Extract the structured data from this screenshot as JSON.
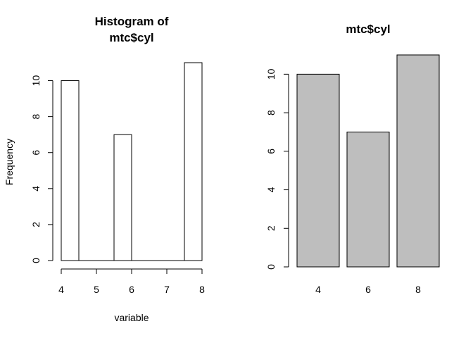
{
  "chart_data": [
    {
      "type": "bar",
      "title_lines": [
        "Histogram of",
        "mtc$cyl"
      ],
      "xlabel": "variable",
      "ylabel": "Frequency",
      "bins": [
        {
          "x0": 4.0,
          "x1": 4.5,
          "count": 10
        },
        {
          "x0": 4.5,
          "x1": 5.0,
          "count": 0
        },
        {
          "x0": 5.0,
          "x1": 5.5,
          "count": 0
        },
        {
          "x0": 5.5,
          "x1": 6.0,
          "count": 7
        },
        {
          "x0": 6.0,
          "x1": 6.5,
          "count": 0
        },
        {
          "x0": 6.5,
          "x1": 7.0,
          "count": 0
        },
        {
          "x0": 7.0,
          "x1": 7.5,
          "count": 0
        },
        {
          "x0": 7.5,
          "x1": 8.0,
          "count": 11
        }
      ],
      "xlim": [
        4,
        8
      ],
      "ylim": [
        0,
        11
      ],
      "xticks": [
        4,
        5,
        6,
        7,
        8
      ],
      "yticks": [
        0,
        2,
        4,
        6,
        8,
        10
      ],
      "bar_fill": "#ffffff",
      "bar_stroke": "#000000"
    },
    {
      "type": "bar",
      "title": "mtc$cyl",
      "categories": [
        "4",
        "6",
        "8"
      ],
      "values": [
        10,
        7,
        11
      ],
      "ylim": [
        0,
        11
      ],
      "yticks": [
        0,
        2,
        4,
        6,
        8,
        10
      ],
      "bar_fill": "#bebebe",
      "bar_stroke": "#000000"
    }
  ]
}
